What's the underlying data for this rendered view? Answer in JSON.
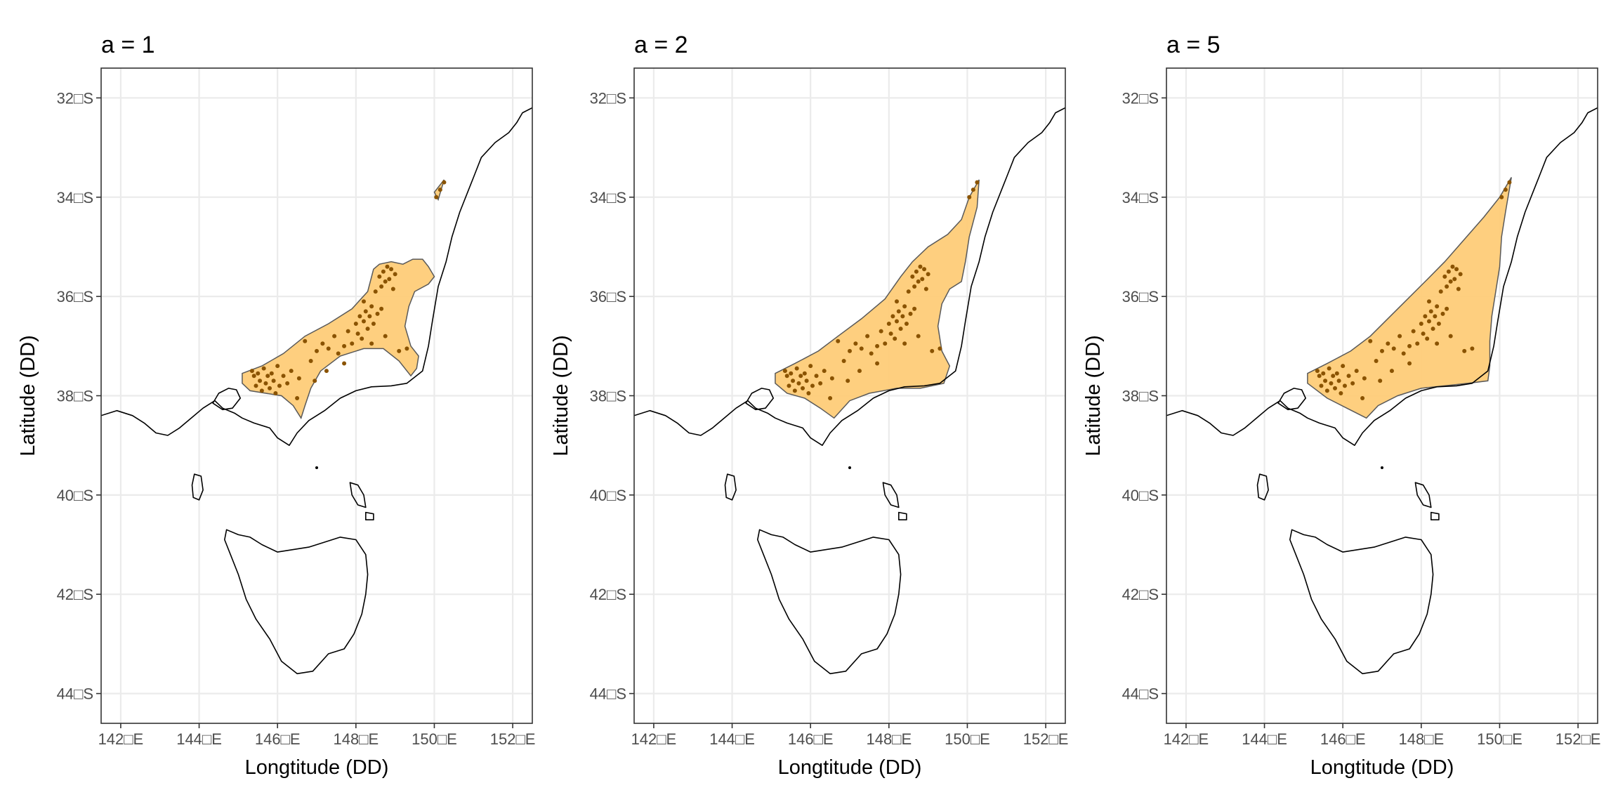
{
  "panels": [
    {
      "title": "a =  1",
      "hull": "a1"
    },
    {
      "title": "a =  2",
      "hull": "a2"
    },
    {
      "title": "a =  5",
      "hull": "a5"
    }
  ],
  "axes": {
    "xlabel": "Longtitude (DD)",
    "ylabel": "Latitude (DD)",
    "xticks": [
      {
        "value": 142,
        "label": "142□E"
      },
      {
        "value": 144,
        "label": "144□E"
      },
      {
        "value": 146,
        "label": "146□E"
      },
      {
        "value": 148,
        "label": "148□E"
      },
      {
        "value": 150,
        "label": "150□E"
      },
      {
        "value": 152,
        "label": "152□E"
      }
    ],
    "yticks": [
      {
        "value": -32,
        "label": "32□S"
      },
      {
        "value": -34,
        "label": "34□S"
      },
      {
        "value": -36,
        "label": "36□S"
      },
      {
        "value": -38,
        "label": "38□S"
      },
      {
        "value": -40,
        "label": "40□S"
      },
      {
        "value": -42,
        "label": "42□S"
      },
      {
        "value": -44,
        "label": "44□S"
      }
    ],
    "xlim": [
      141.5,
      152.5
    ],
    "ylim": [
      -44.6,
      -31.4
    ]
  },
  "colors": {
    "hull_fill": "#fecc78",
    "point": "#8a5300",
    "coast": "#000000",
    "grid": "#ebebeb"
  }
}
